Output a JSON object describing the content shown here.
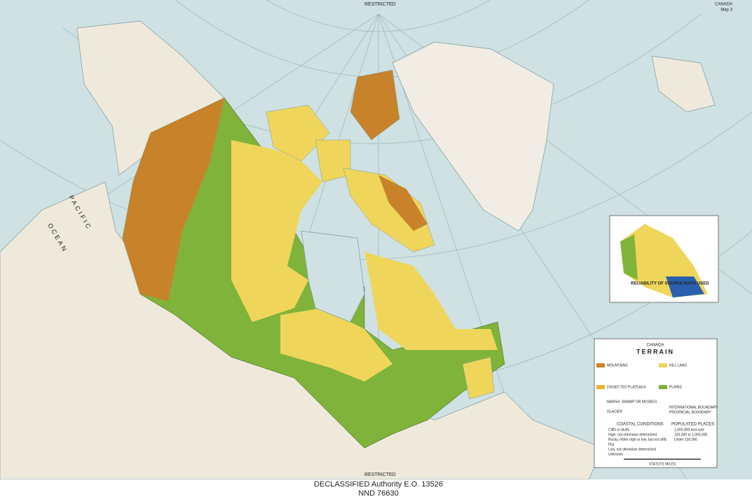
{
  "header": {
    "country": "CANADA",
    "map_number": "Map 3"
  },
  "stamps": [
    "RESTRICTED",
    "RESTRICTED"
  ],
  "map_labels": [
    "PACIFIC",
    "OCEAN"
  ],
  "inset": {
    "title": "RELIABILITY OF SOURCE MAPS USED"
  },
  "legend": {
    "title": "CANADA",
    "subtitle": "TERRAIN",
    "terrain": [
      "MOUNTAINS",
      "HILL LAND",
      "DISSECTED PLATEAUS",
      "PLAINS",
      "MARSH, SWAMP OR MUSKEG",
      "GLACIER"
    ],
    "boundaries": [
      "INTERNATIONAL BOUNDARY",
      "PROVINCIAL BOUNDARY"
    ],
    "coastal_title": "COASTAL CONDITIONS",
    "coastal": [
      "Cliffs or bluffs",
      "High, not otherwise determined",
      "Rocky, either high or low, but not cliffs",
      "Flat",
      "Low, not otherwise determined",
      "Unknown"
    ],
    "places_title": "POPULATED PLACES",
    "places": [
      "1,000,000 and over",
      "100,000 to 1,000,000",
      "Under 100,000"
    ],
    "scale_label": "STATUTE MILES"
  },
  "footer": {
    "line1": "DECLASSIFIED Authority E.O. 13526",
    "line2": "NND 76630"
  }
}
